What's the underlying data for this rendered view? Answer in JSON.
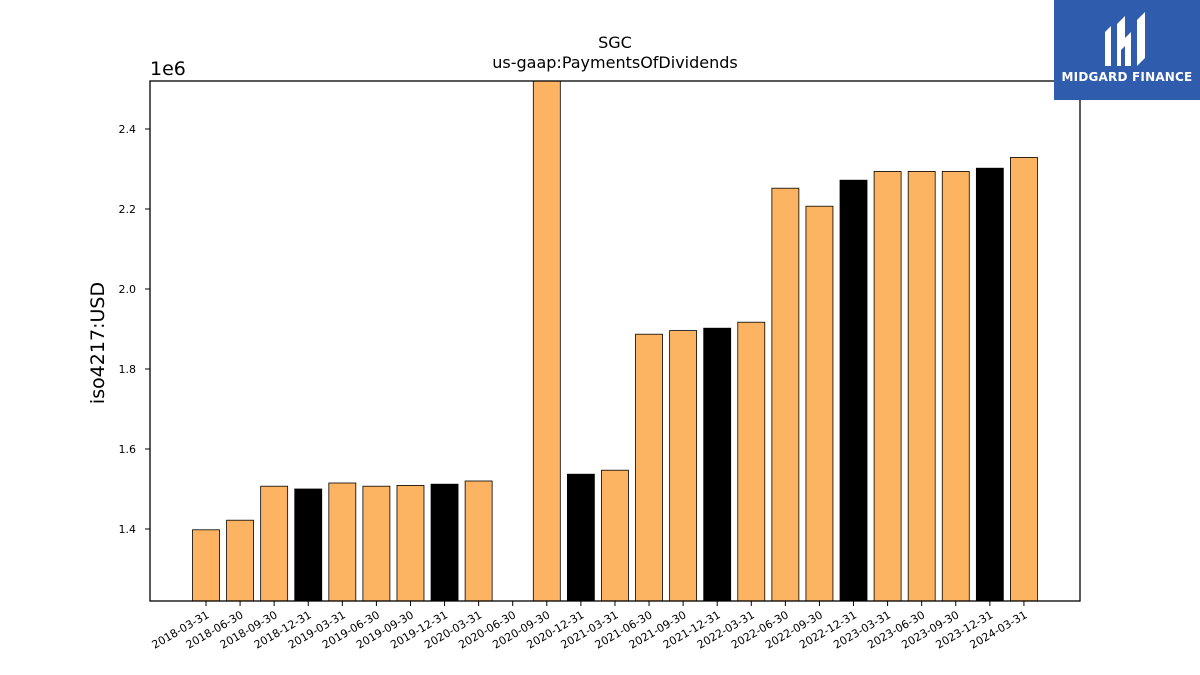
{
  "brand": {
    "name": "MIDGARD FINANCE",
    "logo_icon": "midgard-mark-icon",
    "background_color": "#2f5cad"
  },
  "chart_data": {
    "type": "bar",
    "title": "SGC",
    "subtitle": "us-gaap:PaymentsOfDividends",
    "ylabel": "iso4217:USD",
    "xlabel": "",
    "y_offset_label": "1e6",
    "ylim": [
      1220000,
      2520000
    ],
    "yticks": [
      "1.4",
      "1.6",
      "1.8",
      "2.0",
      "2.2",
      "2.4"
    ],
    "ytick_values": [
      1400000,
      1600000,
      1800000,
      2000000,
      2200000,
      2400000
    ],
    "grid": false,
    "colors": {
      "q1_q3": "#fdb462",
      "q4": "#000000",
      "edge": "#000000"
    },
    "categories": [
      "2018-03-31",
      "2018-06-30",
      "2018-09-30",
      "2018-12-31",
      "2019-03-31",
      "2019-06-30",
      "2019-09-30",
      "2019-12-31",
      "2020-03-31",
      "2020-06-30",
      "2020-09-30",
      "2020-12-31",
      "2021-03-31",
      "2021-06-30",
      "2021-09-30",
      "2021-12-31",
      "2022-03-31",
      "2022-06-30",
      "2022-09-30",
      "2022-12-31",
      "2023-03-31",
      "2023-06-30",
      "2023-09-30",
      "2023-12-31",
      "2024-03-31"
    ],
    "values": [
      1398000,
      1422000,
      1507000,
      1500000,
      1515000,
      1507000,
      1509000,
      1512000,
      1520000,
      null,
      2550000,
      1537000,
      1547000,
      1887000,
      1896000,
      1902000,
      1917000,
      2252000,
      2207000,
      2272000,
      2294000,
      2294000,
      2294000,
      2302000,
      2329000
    ],
    "quarter_end": [
      false,
      false,
      false,
      true,
      false,
      false,
      false,
      true,
      false,
      false,
      false,
      true,
      false,
      false,
      false,
      true,
      false,
      false,
      false,
      true,
      false,
      false,
      false,
      true,
      false
    ]
  }
}
